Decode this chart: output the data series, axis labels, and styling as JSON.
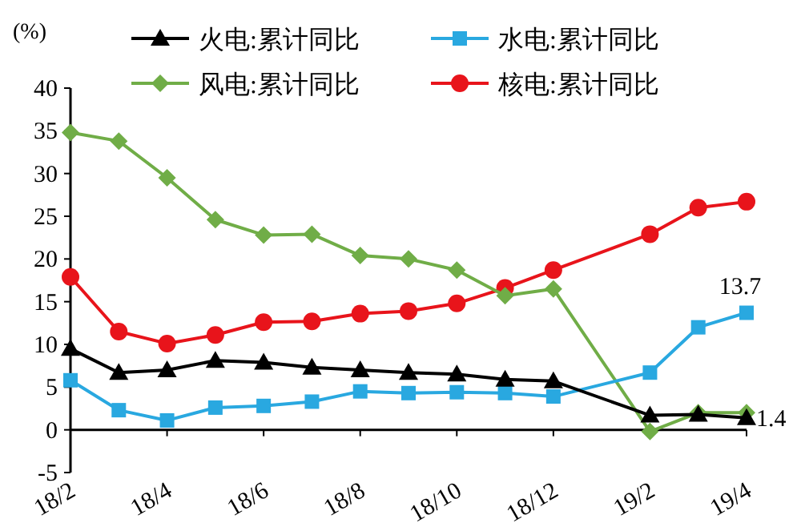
{
  "chart_data": {
    "type": "line",
    "ylabel": "(%)",
    "categories": [
      "18/2",
      null,
      "18/4",
      null,
      "18/6",
      null,
      "18/8",
      null,
      "18/10",
      null,
      "18/12",
      null,
      "19/2",
      null,
      "19/4"
    ],
    "ylim": [
      -5,
      40
    ],
    "yticks": [
      -5,
      0,
      5,
      10,
      15,
      20,
      25,
      30,
      35,
      40
    ],
    "grid": false,
    "legend": "top",
    "line_style": "solid",
    "series": [
      {
        "name": "火电:累计同比",
        "color": "#000000",
        "marker": "triangle",
        "values": [
          9.5,
          6.7,
          7.0,
          8.1,
          7.9,
          7.3,
          7.0,
          6.7,
          6.5,
          5.9,
          5.7,
          null,
          1.7,
          1.8,
          1.4
        ],
        "value_labels": [
          null,
          null,
          null,
          null,
          null,
          null,
          null,
          null,
          null,
          null,
          null,
          null,
          null,
          null,
          "1.4"
        ]
      },
      {
        "name": "水电:累计同比",
        "color": "#29a8e0",
        "marker": "square",
        "values": [
          5.8,
          2.3,
          1.1,
          2.6,
          2.8,
          3.3,
          4.5,
          4.3,
          4.4,
          4.3,
          3.9,
          null,
          6.7,
          12.0,
          13.7
        ],
        "value_labels": [
          null,
          null,
          null,
          null,
          null,
          null,
          null,
          null,
          null,
          null,
          null,
          null,
          null,
          null,
          "13.7"
        ]
      },
      {
        "name": "风电:累计同比",
        "color": "#70ad47",
        "marker": "diamond",
        "values": [
          34.8,
          33.8,
          29.5,
          24.6,
          22.8,
          22.9,
          20.4,
          20.0,
          18.7,
          15.7,
          16.5,
          null,
          -0.2,
          2.0,
          2.0
        ]
      },
      {
        "name": "核电:累计同比",
        "color": "#e8141b",
        "marker": "circle",
        "values": [
          17.9,
          11.5,
          10.1,
          11.1,
          12.6,
          12.7,
          13.6,
          13.9,
          14.8,
          16.6,
          18.7,
          null,
          22.9,
          26.0,
          26.7
        ]
      }
    ]
  }
}
